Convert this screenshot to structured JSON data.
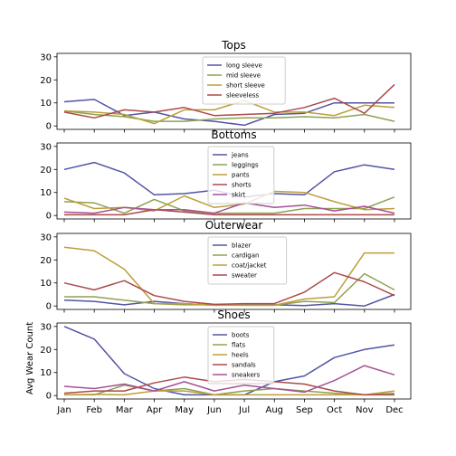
{
  "colors": {
    "c1": "#5254a3",
    "c2": "#8ca252",
    "c3": "#bd9e39",
    "c4": "#ad494a",
    "c5": "#a55194"
  },
  "chart_data": {
    "type": "line",
    "categories": [
      "Jan",
      "Feb",
      "Mar",
      "Apr",
      "May",
      "Jun",
      "Jul",
      "Aug",
      "Sep",
      "Oct",
      "Nov",
      "Dec"
    ],
    "ylabel": "Avg Wear Count",
    "ylim": [
      -1.5,
      31.5
    ],
    "yticks": [
      0,
      10,
      20,
      30
    ],
    "panels": [
      {
        "title": "Tops",
        "series": [
          {
            "name": "long sleeve",
            "color": "#5254a3",
            "values": [
              10.5,
              11.5,
              4.5,
              6,
              3,
              2,
              0.3,
              5,
              5.5,
              10,
              10,
              10
            ]
          },
          {
            "name": "mid sleeve",
            "color": "#8ca252",
            "values": [
              6.5,
              5,
              4,
              2,
              2,
              3,
              3.5,
              3.5,
              4,
              3.5,
              5,
              2
            ]
          },
          {
            "name": "short sleeve",
            "color": "#bd9e39",
            "values": [
              6.5,
              6,
              5,
              1,
              7,
              7,
              11,
              6,
              6,
              4.5,
              9,
              8
            ]
          },
          {
            "name": "sleeveless",
            "color": "#ad494a",
            "values": [
              6,
              3.5,
              7,
              6,
              8,
              4.5,
              5,
              5.5,
              8,
              12,
              5.5,
              18
            ]
          }
        ]
      },
      {
        "title": "Bottoms",
        "series": [
          {
            "name": "jeans",
            "color": "#5254a3",
            "values": [
              20,
              23,
              18.5,
              9,
              9.5,
              11,
              8,
              9.5,
              9,
              19,
              22,
              20
            ]
          },
          {
            "name": "leggings",
            "color": "#8ca252",
            "values": [
              6,
              5.5,
              1,
              7,
              2,
              1,
              1,
              1,
              3,
              3,
              3,
              8
            ]
          },
          {
            "name": "pants",
            "color": "#bd9e39",
            "values": [
              7.5,
              3,
              3.5,
              2,
              8.5,
              3.5,
              5,
              10.5,
              10,
              6,
              2.5,
              3
            ]
          },
          {
            "name": "shorts",
            "color": "#ad494a",
            "values": [
              0.3,
              0.3,
              0.3,
              2.5,
              1.5,
              0.3,
              0.3,
              0.3,
              0.3,
              0.3,
              0.3,
              0.3
            ]
          },
          {
            "name": "skirt",
            "color": "#a55194",
            "values": [
              1.5,
              1,
              3.5,
              2.5,
              2.5,
              1,
              5.5,
              3.5,
              4.5,
              2,
              4,
              1
            ]
          }
        ]
      },
      {
        "title": "Outerwear",
        "series": [
          {
            "name": "blazer",
            "color": "#5254a3",
            "values": [
              2.5,
              2,
              0.5,
              2,
              1,
              0.3,
              0.5,
              0.5,
              0.2,
              1,
              0,
              5
            ]
          },
          {
            "name": "cardigan",
            "color": "#8ca252",
            "values": [
              4,
              4,
              2.5,
              1,
              0.5,
              0.5,
              0.3,
              0.3,
              2,
              1.5,
              14,
              7
            ]
          },
          {
            "name": "coat/jacket",
            "color": "#bd9e39",
            "values": [
              25.5,
              24,
              16,
              1,
              1,
              0.3,
              0.3,
              0.3,
              3,
              4,
              23,
              23
            ]
          },
          {
            "name": "sweater",
            "color": "#ad494a",
            "values": [
              10,
              7,
              11,
              4.5,
              2,
              0.7,
              1,
              1,
              6,
              14.5,
              10.5,
              4.5
            ]
          }
        ]
      },
      {
        "title": "Shoes",
        "series": [
          {
            "name": "boots",
            "color": "#5254a3",
            "values": [
              30,
              24.5,
              9.5,
              3,
              0.3,
              0.3,
              0.3,
              6,
              8.5,
              16.5,
              20,
              22
            ]
          },
          {
            "name": "flats",
            "color": "#8ca252",
            "values": [
              0.3,
              0.3,
              4.5,
              2,
              3,
              0.3,
              2,
              3,
              2,
              1,
              0.3,
              1
            ]
          },
          {
            "name": "heels",
            "color": "#bd9e39",
            "values": [
              0.3,
              0.5,
              0.3,
              2,
              2,
              0.3,
              0.3,
              0.3,
              0.3,
              0.3,
              0.3,
              2
            ]
          },
          {
            "name": "sandals",
            "color": "#ad494a",
            "values": [
              1,
              2,
              2,
              5.5,
              8,
              6,
              7,
              6,
              5,
              2,
              0.3,
              0.3
            ]
          },
          {
            "name": "sneakers",
            "color": "#a55194",
            "values": [
              4,
              3,
              5,
              2,
              6,
              2,
              4.5,
              3,
              1.5,
              6.5,
              13,
              9
            ]
          }
        ]
      }
    ]
  }
}
